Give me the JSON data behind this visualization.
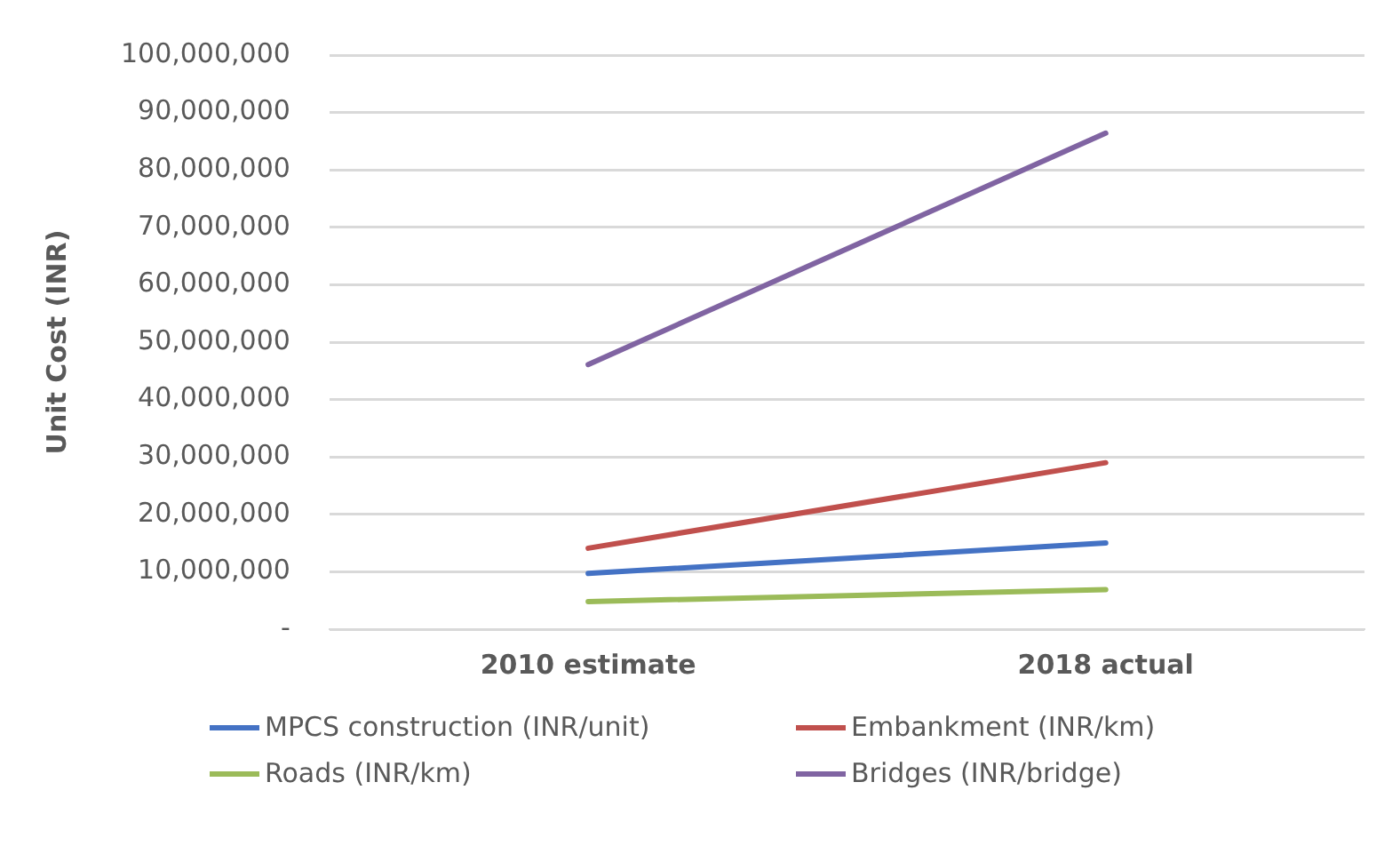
{
  "chart_data": {
    "type": "line",
    "ylabel": "Unit Cost (INR)",
    "categories": [
      "2010 estimate",
      "2018 actual"
    ],
    "series": [
      {
        "name": "MPCS construction (INR/unit)",
        "color": "#4472c4",
        "values": [
          9700000,
          15000000
        ]
      },
      {
        "name": "Embankment (INR/km)",
        "color": "#c0504d",
        "values": [
          14100000,
          29000000
        ]
      },
      {
        "name": "Roads (INR/km)",
        "color": "#9bbb59",
        "values": [
          4800000,
          6900000
        ]
      },
      {
        "name": "Bridges (INR/bridge)",
        "color": "#8064a2",
        "values": [
          46100000,
          86400000
        ]
      }
    ],
    "ylim": [
      0,
      100000000
    ],
    "yticks": [
      {
        "value": 0,
        "label": "-"
      },
      {
        "value": 10000000,
        "label": "10,000,000"
      },
      {
        "value": 20000000,
        "label": "20,000,000"
      },
      {
        "value": 30000000,
        "label": "30,000,000"
      },
      {
        "value": 40000000,
        "label": "40,000,000"
      },
      {
        "value": 50000000,
        "label": "50,000,000"
      },
      {
        "value": 60000000,
        "label": "60,000,000"
      },
      {
        "value": 70000000,
        "label": "70,000,000"
      },
      {
        "value": 80000000,
        "label": "80,000,000"
      },
      {
        "value": 90000000,
        "label": "90,000,000"
      },
      {
        "value": 100000000,
        "label": "100,000,000"
      }
    ],
    "grid": "y",
    "legend": "bottom",
    "marker": "none",
    "line_style": "solid"
  }
}
